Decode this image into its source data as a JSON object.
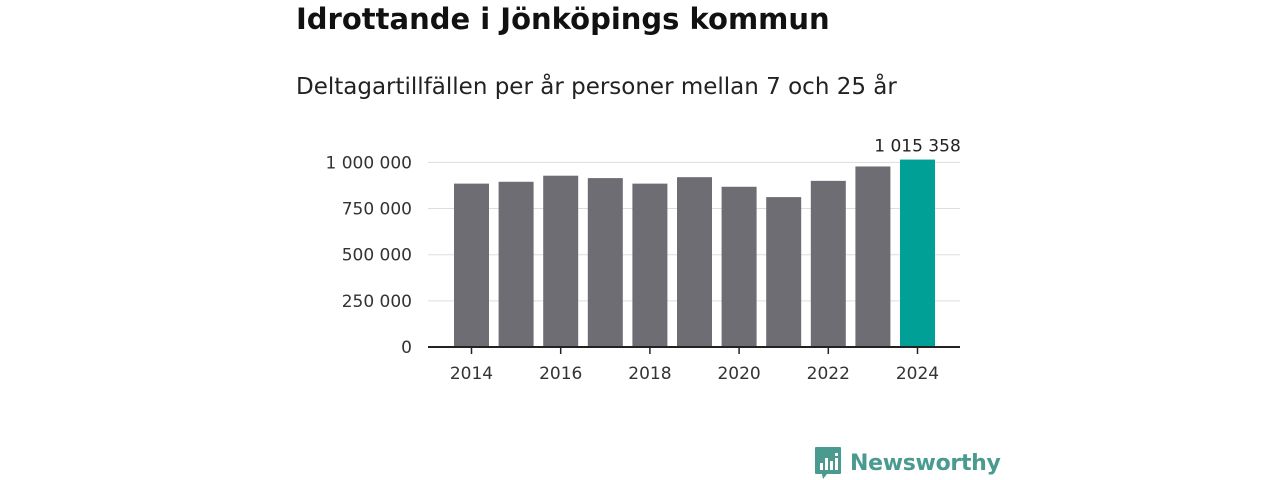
{
  "title": "Idrottande i Jönköpings kommun",
  "subtitle": "Deltagartillfällen per år personer mellan 7 och 25 år",
  "brand": {
    "name": "Newsworthy",
    "color": "#4a9a90"
  },
  "colors": {
    "bar": "#6e6d74",
    "highlight": "#00a096",
    "grid": "#dddddd",
    "axis": "#222222"
  },
  "chart_data": {
    "type": "bar",
    "title": "Idrottande i Jönköpings kommun",
    "subtitle": "Deltagartillfällen per år personer mellan 7 och 25 år",
    "xlabel": "",
    "ylabel": "",
    "categories": [
      "2014",
      "2015",
      "2016",
      "2017",
      "2018",
      "2019",
      "2020",
      "2021",
      "2022",
      "2023",
      "2024"
    ],
    "values": [
      885000,
      895000,
      928000,
      915000,
      885000,
      920000,
      868000,
      812000,
      900000,
      978000,
      1015358
    ],
    "ylim": [
      0,
      1000000
    ],
    "yticks": [
      0,
      250000,
      500000,
      750000,
      1000000
    ],
    "ytick_labels": [
      "0",
      "250 000",
      "500 000",
      "750 000",
      "1 000 000"
    ],
    "xtick_labels": [
      "2014",
      "2016",
      "2018",
      "2020",
      "2022",
      "2024"
    ],
    "highlight_index": 10,
    "annotation": {
      "index": 10,
      "label": "1 015 358"
    },
    "grid": true,
    "legend": "none"
  }
}
